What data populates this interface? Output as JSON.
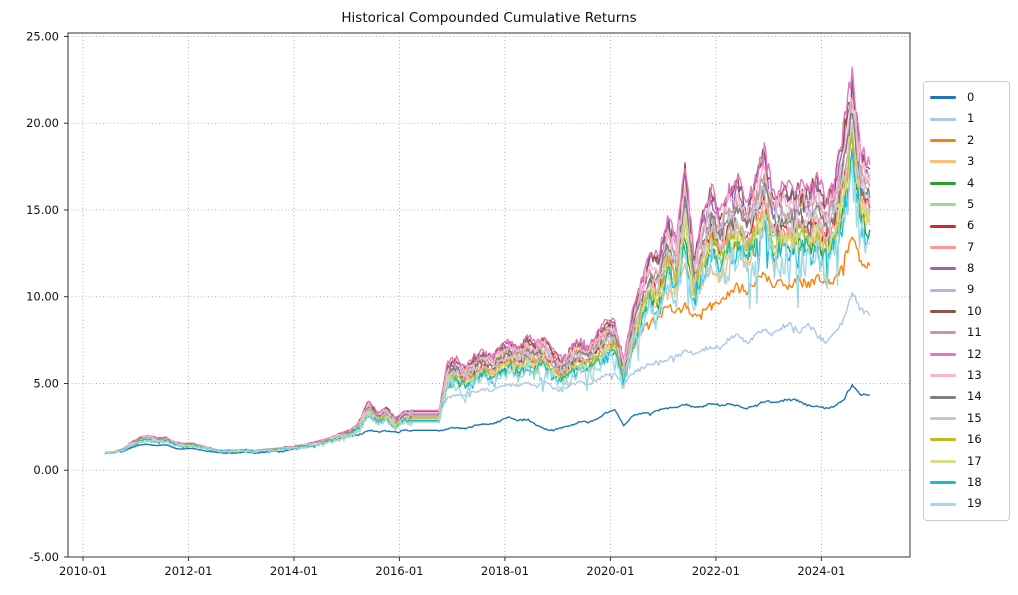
{
  "chart_data": {
    "type": "line",
    "title": "Historical Compounded Cumulative Returns",
    "xlabel": "",
    "ylabel": "",
    "grid": "dotted",
    "grid_color": "#aaaaaa",
    "axis_color": "#333333",
    "text_color": "#111111",
    "xlim": [
      2009.716,
      2025.68
    ],
    "ylim": [
      -5,
      25.2
    ],
    "x_ticks": [
      {
        "value": 2010,
        "label": "2010-01"
      },
      {
        "value": 2012,
        "label": "2012-01"
      },
      {
        "value": 2014,
        "label": "2014-01"
      },
      {
        "value": 2016,
        "label": "2016-01"
      },
      {
        "value": 2018,
        "label": "2018-01"
      },
      {
        "value": 2020,
        "label": "2020-01"
      },
      {
        "value": 2022,
        "label": "2022-01"
      },
      {
        "value": 2024,
        "label": "2024-01"
      }
    ],
    "y_ticks": [
      {
        "value": -5,
        "label": "-5.00"
      },
      {
        "value": 0,
        "label": "0.00"
      },
      {
        "value": 5,
        "label": "5.00"
      },
      {
        "value": 10,
        "label": "10.00"
      },
      {
        "value": 15,
        "label": "15.00"
      },
      {
        "value": 20,
        "label": "20.00"
      },
      {
        "value": 25,
        "label": "25.00"
      }
    ],
    "legend": {
      "position": "right-outside"
    },
    "sampling": {
      "x_start": 2010.4167,
      "x_step": 0.16667,
      "n_points": 88,
      "unit": "decimal-year"
    },
    "band_note": "Series without explicit values derive as value = 1 + (band_base - 1) * band_scale; band_base traces the top of the tight multi-series band. Flat segment 2016.25-2016.75 precedes a sharp jump; peak ~22.9 in mid-2024.",
    "band_base": [
      1.0,
      1.04,
      1.22,
      1.58,
      1.9,
      2.0,
      1.82,
      1.88,
      1.6,
      1.5,
      1.55,
      1.42,
      1.25,
      1.12,
      1.16,
      1.12,
      1.18,
      1.12,
      1.16,
      1.22,
      1.28,
      1.34,
      1.4,
      1.5,
      1.62,
      1.78,
      1.95,
      2.15,
      2.35,
      2.9,
      4.0,
      3.3,
      3.65,
      2.95,
      3.4,
      3.45,
      3.45,
      3.45,
      3.45,
      6.2,
      6.45,
      5.95,
      6.5,
      6.85,
      6.6,
      7.2,
      7.45,
      7.1,
      7.6,
      7.35,
      7.7,
      6.8,
      6.45,
      7.1,
      7.45,
      7.2,
      7.9,
      8.5,
      8.6,
      6.4,
      9.0,
      11.0,
      12.5,
      12.2,
      14.7,
      13.3,
      17.5,
      12.3,
      14.8,
      16.2,
      14.9,
      16.3,
      16.6,
      15.4,
      16.8,
      18.4,
      15.9,
      16.4,
      16.1,
      16.6,
      16.2,
      16.8,
      15.6,
      16.7,
      19.5,
      22.9,
      18.5,
      17.6
    ],
    "series": [
      {
        "name": "0",
        "color": "#1f77b4",
        "noise": 0.012,
        "values": [
          1.0,
          1.02,
          1.1,
          1.28,
          1.45,
          1.5,
          1.42,
          1.45,
          1.28,
          1.22,
          1.25,
          1.18,
          1.08,
          1.0,
          1.02,
          1.0,
          1.04,
          1.0,
          1.03,
          1.08,
          1.12,
          1.18,
          1.25,
          1.35,
          1.48,
          1.6,
          1.72,
          1.85,
          1.95,
          2.1,
          2.3,
          2.2,
          2.3,
          2.2,
          2.28,
          2.3,
          2.3,
          2.3,
          2.3,
          2.38,
          2.45,
          2.42,
          2.55,
          2.65,
          2.7,
          2.85,
          3.05,
          2.9,
          2.95,
          2.6,
          2.4,
          2.3,
          2.45,
          2.6,
          2.8,
          2.75,
          3.0,
          3.3,
          3.5,
          2.6,
          3.1,
          3.25,
          3.3,
          3.45,
          3.55,
          3.65,
          3.8,
          3.6,
          3.7,
          3.85,
          3.7,
          3.85,
          3.7,
          3.55,
          3.8,
          3.95,
          3.9,
          4.05,
          4.1,
          3.95,
          3.75,
          3.65,
          3.55,
          3.7,
          4.1,
          4.85,
          4.4,
          4.35
        ]
      },
      {
        "name": "1",
        "color": "#aec7e8",
        "noise": 0.018,
        "values": [
          1.0,
          1.04,
          1.2,
          1.54,
          1.84,
          1.93,
          1.76,
          1.82,
          1.56,
          1.47,
          1.51,
          1.39,
          1.23,
          1.11,
          1.15,
          1.11,
          1.17,
          1.11,
          1.15,
          1.2,
          1.26,
          1.32,
          1.37,
          1.47,
          1.58,
          1.73,
          1.88,
          2.07,
          2.26,
          2.77,
          3.79,
          3.14,
          3.46,
          2.81,
          3.23,
          3.28,
          3.28,
          3.28,
          3.28,
          4.2,
          4.4,
          4.3,
          4.5,
          4.7,
          4.6,
          4.85,
          5.0,
          4.85,
          5.05,
          4.95,
          5.1,
          4.7,
          4.65,
          4.9,
          5.05,
          4.95,
          5.2,
          5.45,
          5.6,
          4.9,
          5.6,
          5.9,
          6.1,
          6.2,
          6.45,
          6.55,
          6.95,
          6.7,
          6.9,
          7.05,
          7.15,
          7.55,
          7.75,
          7.4,
          7.7,
          8.05,
          7.9,
          8.2,
          8.4,
          8.1,
          8.3,
          7.8,
          7.5,
          7.8,
          8.6,
          10.4,
          9.2,
          8.9
        ]
      },
      {
        "name": "2",
        "color": "#ff7f0e",
        "noise": 0.022,
        "values": [
          1.0,
          1.04,
          1.21,
          1.56,
          1.87,
          1.97,
          1.8,
          1.85,
          1.58,
          1.49,
          1.53,
          1.41,
          1.24,
          1.12,
          1.16,
          1.12,
          1.17,
          1.12,
          1.16,
          1.21,
          1.27,
          1.33,
          1.39,
          1.49,
          1.6,
          1.76,
          1.92,
          2.12,
          2.31,
          2.84,
          3.91,
          3.23,
          3.57,
          2.89,
          3.33,
          3.38,
          3.38,
          3.38,
          3.38,
          6.0,
          6.25,
          5.75,
          6.3,
          6.6,
          6.4,
          6.95,
          7.2,
          6.85,
          7.35,
          7.1,
          7.45,
          6.55,
          6.2,
          6.85,
          7.2,
          6.95,
          7.6,
          8.2,
          8.3,
          6.1,
          7.0,
          8.0,
          8.6,
          8.8,
          9.4,
          9.1,
          9.6,
          8.8,
          9.2,
          9.6,
          9.5,
          10.3,
          10.7,
          10.2,
          10.9,
          11.4,
          10.5,
          10.9,
          10.6,
          11.0,
          10.7,
          11.2,
          10.6,
          11.0,
          12.0,
          13.3,
          12.1,
          11.8
        ]
      },
      {
        "name": "3",
        "color": "#ffbb78",
        "noise": 0.03,
        "values": [
          1.0,
          1.04,
          1.2,
          1.52,
          1.81,
          1.9,
          1.74,
          1.79,
          1.54,
          1.45,
          1.5,
          1.38,
          1.23,
          1.11,
          1.14,
          1.11,
          1.16,
          1.11,
          1.14,
          1.2,
          1.25,
          1.31,
          1.36,
          1.45,
          1.56,
          1.7,
          1.86,
          2.04,
          2.22,
          2.71,
          3.7,
          3.07,
          3.39,
          2.76,
          3.16,
          3.21,
          3.21,
          3.21,
          3.21,
          5.68,
          5.91,
          5.46,
          5.95,
          6.27,
          6.04,
          6.58,
          6.81,
          6.49,
          6.94,
          6.72,
          7.03,
          6.22,
          5.91,
          6.49,
          6.81,
          6.58,
          7.21,
          7.75,
          7.84,
          6.0,
          7.6,
          8.8,
          9.5,
          9.2,
          10.6,
          10.3,
          11.8,
          10.2,
          11.0,
          11.6,
          11.1,
          12.3,
          12.8,
          11.9,
          13.1,
          14.4,
          12.7,
          13.2,
          13.0,
          13.4,
          13.1,
          13.6,
          12.6,
          13.5,
          15.6,
          18.2,
          15.0,
          14.3
        ]
      },
      {
        "name": "4",
        "color": "#2ca02c",
        "band_scale": 0.775,
        "noise": 0.038
      },
      {
        "name": "5",
        "color": "#98df8a",
        "band_scale": 0.82,
        "noise": 0.038
      },
      {
        "name": "6",
        "color": "#d62728",
        "band_scale": 0.85,
        "noise": 0.032
      },
      {
        "name": "7",
        "color": "#ff9896",
        "band_scale": 0.835,
        "noise": 0.032
      },
      {
        "name": "8",
        "color": "#9467bd",
        "band_scale": 0.965,
        "noise": 0.03
      },
      {
        "name": "9",
        "color": "#c5b0d5",
        "band_scale": 0.905,
        "noise": 0.03
      },
      {
        "name": "10",
        "color": "#8c564b",
        "band_scale": 0.985,
        "noise": 0.028
      },
      {
        "name": "11",
        "color": "#c49c94",
        "band_scale": 0.925,
        "noise": 0.03
      },
      {
        "name": "12",
        "color": "#e377c2",
        "band_scale": 1.0,
        "noise": 0.028
      },
      {
        "name": "13",
        "color": "#f7b6d2",
        "band_scale": 0.945,
        "noise": 0.03
      },
      {
        "name": "14",
        "color": "#7f7f7f",
        "band_scale": 0.885,
        "noise": 0.032
      },
      {
        "name": "15",
        "color": "#c7c7c7",
        "band_scale": 0.865,
        "noise": 0.032
      },
      {
        "name": "16",
        "color": "#bcbd22",
        "band_scale": 0.805,
        "noise": 0.042
      },
      {
        "name": "17",
        "color": "#dbdb8d",
        "band_scale": 0.79,
        "noise": 0.048
      },
      {
        "name": "18",
        "color": "#17becf",
        "band_scale": 0.755,
        "noise": 0.06
      },
      {
        "name": "19",
        "color": "#9edae5",
        "band_scale": 0.725,
        "noise": 0.09
      }
    ]
  }
}
